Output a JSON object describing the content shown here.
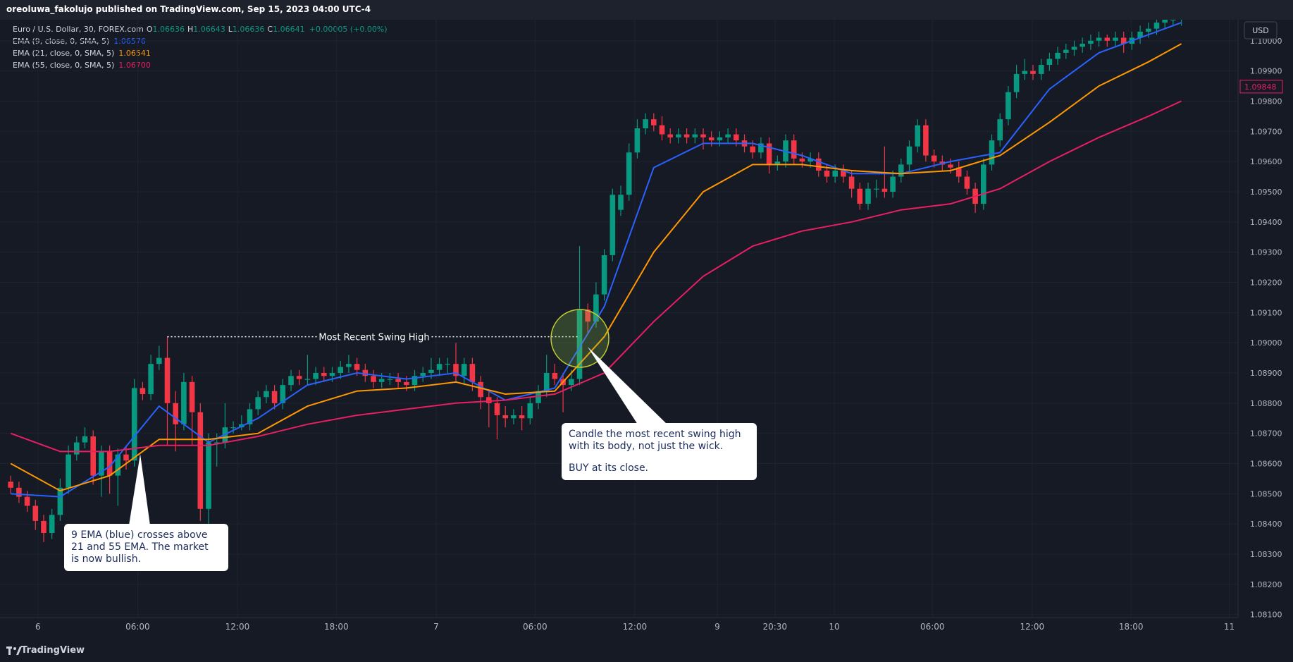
{
  "header": {
    "title": "oreoluwa_fakolujo published on TradingView.com, Sep 15, 2023 04:00 UTC-4"
  },
  "legend": {
    "symbol": "Euro / U.S. Dollar, 30, FOREX.com",
    "ohlc": [
      {
        "label": "O",
        "value": "1.06636"
      },
      {
        "label": "H",
        "value": "1.06643"
      },
      {
        "label": "L",
        "value": "1.06636"
      },
      {
        "label": "C",
        "value": "1.06641"
      }
    ],
    "change": "+0.00005 (+0.00%)"
  },
  "footer": {
    "brand": "TradingView"
  },
  "chart_data": {
    "type": "candlestick",
    "currency": "USD",
    "up_color": "#089981",
    "down_color": "#f23645",
    "ylim": [
      1.0809,
      1.1008
    ],
    "yticks": [
      {
        "value": 1.081,
        "label": "1.08100"
      },
      {
        "value": 1.082,
        "label": "1.08200"
      },
      {
        "value": 1.083,
        "label": "1.08300"
      },
      {
        "value": 1.084,
        "label": "1.08400"
      },
      {
        "value": 1.085,
        "label": "1.08500"
      },
      {
        "value": 1.086,
        "label": "1.08600"
      },
      {
        "value": 1.087,
        "label": "1.08700"
      },
      {
        "value": 1.088,
        "label": "1.08800"
      },
      {
        "value": 1.089,
        "label": "1.08900"
      },
      {
        "value": 1.09,
        "label": "1.09000"
      },
      {
        "value": 1.091,
        "label": "1.09100"
      },
      {
        "value": 1.092,
        "label": "1.09200"
      },
      {
        "value": 1.093,
        "label": "1.09300"
      },
      {
        "value": 1.094,
        "label": "1.09400"
      },
      {
        "value": 1.095,
        "label": "1.09500"
      },
      {
        "value": 1.096,
        "label": "1.09600"
      },
      {
        "value": 1.097,
        "label": "1.09700"
      },
      {
        "value": 1.098,
        "label": "1.09800"
      },
      {
        "value": 1.099,
        "label": "1.09900"
      },
      {
        "value": 1.1,
        "label": "1.10000"
      }
    ],
    "xticks": [
      {
        "value": 3.3,
        "label": "6"
      },
      {
        "value": 15.4,
        "label": "06:00"
      },
      {
        "value": 27.5,
        "label": "12:00"
      },
      {
        "value": 39.5,
        "label": "18:00"
      },
      {
        "value": 51.6,
        "label": "7"
      },
      {
        "value": 63.6,
        "label": "06:00"
      },
      {
        "value": 75.7,
        "label": "12:00"
      },
      {
        "value": 85.7,
        "label": "9"
      },
      {
        "value": 92.7,
        "label": "20:30"
      },
      {
        "value": 99.9,
        "label": "10"
      },
      {
        "value": 111.8,
        "label": "06:00"
      },
      {
        "value": 123.9,
        "label": "12:00"
      },
      {
        "value": 135.9,
        "label": "18:00"
      },
      {
        "value": 147.8,
        "label": "11"
      }
    ],
    "grid": true,
    "open": [
      1.0854,
      1.0852,
      1.0849,
      1.0846,
      1.0841,
      1.0837,
      1.0843,
      1.0852,
      1.0863,
      1.0867,
      1.0869,
      1.0856,
      1.0864,
      1.0856,
      1.0863,
      1.0861,
      1.0885,
      1.0883,
      1.0893,
      1.0895,
      1.088,
      1.0873,
      1.0887,
      1.0877,
      1.0845,
      1.0867,
      1.0867,
      1.0872,
      1.0872,
      1.0873,
      1.0878,
      1.0882,
      1.0884,
      1.088,
      1.0886,
      1.0889,
      1.0888,
      1.0888,
      1.089,
      1.0889,
      1.089,
      1.0892,
      1.0893,
      1.0891,
      1.0889,
      1.0887,
      1.0888,
      1.0888,
      1.0887,
      1.0886,
      1.0889,
      1.089,
      1.0891,
      1.0893,
      1.0893,
      1.0889,
      1.0893,
      1.0887,
      1.0882,
      1.088,
      1.0876,
      1.0875,
      1.0876,
      1.0875,
      1.088,
      1.0884,
      1.089,
      1.0888,
      1.0886,
      1.0888,
      1.0911,
      1.0907,
      1.0916,
      1.0929,
      1.0944,
      1.0949,
      1.0963,
      1.0971,
      1.0974,
      1.0972,
      1.0969,
      1.0968,
      1.0969,
      1.0968,
      1.0969,
      1.0968,
      1.0967,
      1.0968,
      1.0969,
      1.0967,
      1.0965,
      1.0963,
      1.0966,
      1.0959,
      1.096,
      1.0967,
      1.0961,
      1.096,
      1.0961,
      1.0957,
      1.0955,
      1.0957,
      1.0955,
      1.0951,
      1.0946,
      1.0951,
      1.0951,
      1.095,
      1.0955,
      1.0959,
      1.0965,
      1.0972,
      1.0962,
      1.096,
      1.0959,
      1.0958,
      1.0955,
      1.0951,
      1.0946,
      1.0959,
      1.0967,
      1.0974,
      1.0983,
      1.0989,
      1.099,
      1.0989,
      1.0992,
      1.0994,
      1.0996,
      1.0997,
      1.0998,
      1.0999,
      1.1,
      1.1001,
      1.1,
      1.1001,
      1.0999,
      1.1001,
      1.1003,
      1.1004,
      1.1006,
      1.1007,
      1.1007
    ],
    "high": [
      1.0856,
      1.0854,
      1.0851,
      1.0848,
      1.0843,
      1.0845,
      1.0855,
      1.0866,
      1.0869,
      1.0872,
      1.0871,
      1.0866,
      1.0866,
      1.0865,
      1.0866,
      1.0888,
      1.0887,
      1.0896,
      1.0899,
      1.0902,
      1.0884,
      1.089,
      1.0889,
      1.088,
      1.087,
      1.087,
      1.088,
      1.0874,
      1.0876,
      1.088,
      1.0884,
      1.0886,
      1.0886,
      1.0888,
      1.0891,
      1.0891,
      1.0896,
      1.0892,
      1.0892,
      1.0892,
      1.0894,
      1.0896,
      1.0895,
      1.0893,
      1.0891,
      1.089,
      1.089,
      1.089,
      1.0889,
      1.0891,
      1.0892,
      1.0895,
      1.0895,
      1.0895,
      1.09,
      1.0895,
      1.0895,
      1.0889,
      1.0884,
      1.0882,
      1.0879,
      1.0878,
      1.0879,
      1.0882,
      1.0886,
      1.0896,
      1.0893,
      1.089,
      1.0891,
      1.0932,
      1.0913,
      1.092,
      1.0931,
      1.0951,
      1.0952,
      1.0966,
      1.0974,
      1.0976,
      1.0976,
      1.0975,
      1.0971,
      1.0971,
      1.0971,
      1.0971,
      1.0971,
      1.097,
      1.097,
      1.0971,
      1.0971,
      1.0969,
      1.0967,
      1.0968,
      1.0968,
      1.0962,
      1.0969,
      1.0969,
      1.0963,
      1.0963,
      1.0963,
      1.0959,
      1.0959,
      1.0959,
      1.0957,
      1.0953,
      1.0953,
      1.0954,
      1.0965,
      1.0957,
      1.0961,
      1.0967,
      1.0974,
      1.0974,
      1.0964,
      1.0962,
      1.0961,
      1.096,
      1.0957,
      1.0953,
      1.0961,
      1.0969,
      1.0976,
      1.0985,
      1.0992,
      1.0994,
      1.0992,
      1.0994,
      1.0996,
      1.0998,
      1.0999,
      1.1,
      1.1001,
      1.1002,
      1.1003,
      1.1002,
      1.1003,
      1.1003,
      1.1003,
      1.1005,
      1.1006,
      1.1008,
      1.1009,
      1.1009,
      1.101
    ],
    "low": [
      1.085,
      1.0847,
      1.0844,
      1.0838,
      1.0834,
      1.0835,
      1.0841,
      1.085,
      1.0861,
      1.0865,
      1.0853,
      1.0849,
      1.085,
      1.0846,
      1.0858,
      1.0859,
      1.0881,
      1.0881,
      1.0891,
      1.0866,
      1.0864,
      1.0871,
      1.0866,
      1.0841,
      1.0838,
      1.0859,
      1.0865,
      1.087,
      1.0871,
      1.0871,
      1.0876,
      1.088,
      1.0878,
      1.0878,
      1.0884,
      1.0886,
      1.0886,
      1.0886,
      1.0887,
      1.0887,
      1.0888,
      1.089,
      1.0889,
      1.0887,
      1.0885,
      1.0885,
      1.0886,
      1.0885,
      1.0884,
      1.0884,
      1.0887,
      1.0888,
      1.0889,
      1.089,
      1.0887,
      1.0886,
      1.0884,
      1.0878,
      1.0872,
      1.0868,
      1.0872,
      1.0873,
      1.0871,
      1.0873,
      1.0878,
      1.0882,
      1.0886,
      1.0877,
      1.0884,
      1.0886,
      1.0903,
      1.0905,
      1.0914,
      1.0927,
      1.0942,
      1.0947,
      1.0961,
      1.0969,
      1.097,
      1.0967,
      1.0966,
      1.0966,
      1.0966,
      1.0966,
      1.0964,
      1.0965,
      1.0965,
      1.0966,
      1.0965,
      1.0963,
      1.0961,
      1.0961,
      1.0956,
      1.0957,
      1.0958,
      1.0959,
      1.0958,
      1.0958,
      1.0955,
      1.0953,
      1.0953,
      1.0953,
      1.0948,
      1.0944,
      1.0944,
      1.0948,
      1.0948,
      1.0948,
      1.0953,
      1.0957,
      1.0963,
      1.096,
      1.0958,
      1.0957,
      1.0956,
      1.0953,
      1.0949,
      1.0943,
      1.0944,
      1.0957,
      1.0965,
      1.0972,
      1.0981,
      1.0987,
      1.0987,
      1.0987,
      1.099,
      1.0992,
      1.0994,
      1.0995,
      1.0996,
      1.0997,
      1.0998,
      1.0998,
      1.0998,
      1.0996,
      1.0997,
      1.0999,
      1.1001,
      1.1002,
      1.1004,
      1.1005,
      1.1005
    ],
    "close": [
      1.0852,
      1.0849,
      1.0846,
      1.0841,
      1.0837,
      1.0843,
      1.0852,
      1.0863,
      1.0867,
      1.0869,
      1.0856,
      1.0864,
      1.0856,
      1.0863,
      1.0861,
      1.0885,
      1.0883,
      1.0893,
      1.0895,
      1.088,
      1.0873,
      1.0887,
      1.0877,
      1.0845,
      1.0867,
      1.0867,
      1.0872,
      1.0872,
      1.0873,
      1.0878,
      1.0882,
      1.0884,
      1.088,
      1.0886,
      1.0889,
      1.0888,
      1.0888,
      1.089,
      1.0889,
      1.089,
      1.0892,
      1.0893,
      1.0891,
      1.0889,
      1.0887,
      1.0888,
      1.0888,
      1.0887,
      1.0886,
      1.0889,
      1.089,
      1.0891,
      1.0893,
      1.0893,
      1.0889,
      1.0893,
      1.0887,
      1.0882,
      1.088,
      1.0876,
      1.0875,
      1.0876,
      1.0875,
      1.088,
      1.0884,
      1.089,
      1.0888,
      1.0886,
      1.0888,
      1.0911,
      1.0907,
      1.0916,
      1.0929,
      1.0949,
      1.0949,
      1.0963,
      1.0971,
      1.0974,
      1.0972,
      1.0969,
      1.0968,
      1.0969,
      1.0968,
      1.0969,
      1.0968,
      1.0967,
      1.0968,
      1.0969,
      1.0967,
      1.0965,
      1.0963,
      1.0966,
      1.0959,
      1.096,
      1.0967,
      1.0961,
      1.096,
      1.0961,
      1.0957,
      1.0955,
      1.0957,
      1.0955,
      1.0951,
      1.0946,
      1.0951,
      1.0951,
      1.095,
      1.0955,
      1.0959,
      1.0965,
      1.0972,
      1.0962,
      1.096,
      1.0959,
      1.0958,
      1.0955,
      1.0951,
      1.0946,
      1.0959,
      1.0967,
      1.0974,
      1.0983,
      1.0989,
      1.099,
      1.0989,
      1.0992,
      1.0994,
      1.0996,
      1.0997,
      1.0998,
      1.0999,
      1.1,
      1.1001,
      1.1,
      1.1001,
      1.0999,
      1.1001,
      1.1003,
      1.1004,
      1.1006,
      1.1007,
      1.1007,
      1.1008
    ],
    "ema_x": [
      0,
      6,
      12,
      18,
      24,
      30,
      36,
      42,
      48,
      54,
      60,
      66,
      72,
      78,
      84,
      90,
      96,
      102,
      108,
      114,
      120,
      126,
      132,
      138,
      142
    ],
    "series": [
      {
        "name": "EMA (9, close, 0, SMA, 5)",
        "legend_value": "1.06576",
        "color": "#2962ff",
        "values": [
          1.085,
          1.0849,
          1.0859,
          1.0879,
          1.0867,
          1.0875,
          1.0886,
          1.089,
          1.0888,
          1.089,
          1.0881,
          1.0885,
          1.0912,
          1.0958,
          1.0966,
          1.0966,
          1.0962,
          1.0956,
          1.0956,
          1.096,
          1.0963,
          1.0984,
          1.0996,
          1.1002,
          1.1006
        ]
      },
      {
        "name": "EMA (21, close, 0, SMA, 5)",
        "legend_value": "1.06541",
        "color": "#ff9800",
        "values": [
          1.086,
          1.0851,
          1.0856,
          1.0868,
          1.0868,
          1.087,
          1.0879,
          1.0884,
          1.0885,
          1.0887,
          1.0883,
          1.0884,
          1.0902,
          1.093,
          1.095,
          1.0959,
          1.0959,
          1.0957,
          1.0956,
          1.0957,
          1.0962,
          1.0973,
          1.0985,
          1.0993,
          1.0999
        ]
      },
      {
        "name": "EMA (55, close, 0, SMA, 5)",
        "legend_value": "1.06700",
        "color": "#e91e63",
        "values": [
          1.087,
          1.0864,
          1.0864,
          1.0866,
          1.0866,
          1.0869,
          1.0873,
          1.0876,
          1.0878,
          1.088,
          1.0881,
          1.0883,
          1.089,
          1.0907,
          1.0922,
          1.0932,
          1.0937,
          1.094,
          1.0944,
          1.0946,
          1.0951,
          1.096,
          1.0968,
          1.0975,
          1.098
        ]
      }
    ],
    "price_label": {
      "value": 1.09848,
      "label": "1.09848"
    },
    "swing_high": {
      "label": "Most Recent Swing High",
      "value": 1.0902
    },
    "annotations": [
      {
        "lines": [
          "9 EMA (blue) crosses above",
          "21 and 55 EMA. The market",
          "is now bullish."
        ]
      },
      {
        "lines": [
          "Candle the most recent swing high",
          "with its body, not just the wick.",
          "BUY at its close."
        ]
      }
    ]
  }
}
